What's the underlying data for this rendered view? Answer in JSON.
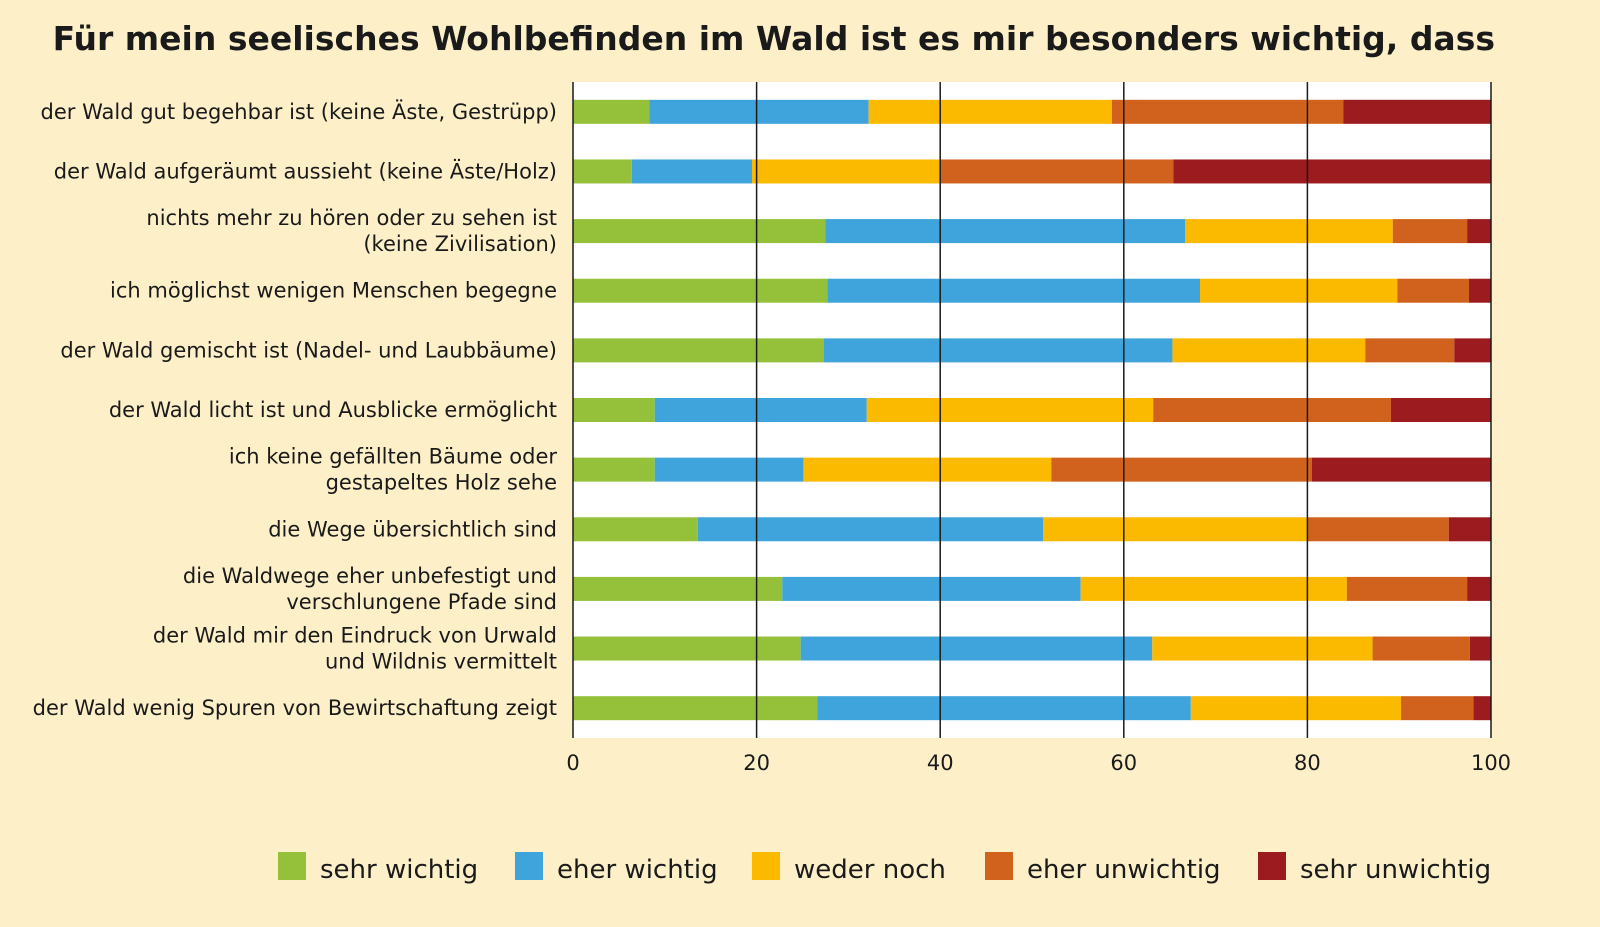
{
  "chart_data": {
    "type": "bar",
    "orientation": "horizontal",
    "stacked": true,
    "title": "Für mein seelisches Wohlbefinden im Wald ist es mir besonders wichtig, dass",
    "xlabel": "",
    "ylabel": "",
    "xlim": [
      0,
      100
    ],
    "xticks": [
      "0",
      "20",
      "40",
      "60",
      "80",
      "100"
    ],
    "grid": "vertical",
    "legend_position": "bottom",
    "categories": [
      [
        "der Wald gut begehbar ist (keine Äste, Gestrüpp)"
      ],
      [
        "der Wald aufgeräumt aussieht (keine Äste/Holz)"
      ],
      [
        "nichts mehr zu hören oder zu sehen ist",
        "(keine Zivilisation)"
      ],
      [
        "ich möglichst wenigen Menschen begegne"
      ],
      [
        "der Wald gemischt ist (Nadel- und Laubbäume)"
      ],
      [
        "der Wald licht ist und Ausblicke ermöglicht"
      ],
      [
        "ich keine gefällten Bäume oder",
        "gestapeltes Holz sehe"
      ],
      [
        "die Wege übersichtlich sind"
      ],
      [
        "die Waldwege eher unbefestigt und",
        "verschlungene Pfade sind"
      ],
      [
        "der Wald mir den Eindruck von Urwald",
        "und Wildnis vermittelt"
      ],
      [
        "der Wald wenig Spuren von Bewirtschaftung zeigt"
      ]
    ],
    "series": [
      {
        "name": "sehr wichtig",
        "color": "#95c13a",
        "values": [
          8.3,
          6.4,
          27.5,
          27.7,
          27.3,
          8.9,
          8.9,
          13.6,
          22.8,
          24.8,
          26.6
        ]
      },
      {
        "name": "eher wichtig",
        "color": "#3fa4dc",
        "values": [
          23.9,
          13.1,
          39.2,
          40.6,
          38.0,
          23.1,
          16.2,
          37.6,
          32.5,
          38.3,
          40.7
        ]
      },
      {
        "name": "weder noch",
        "color": "#fbb900",
        "values": [
          26.5,
          20.5,
          22.6,
          21.5,
          21.0,
          31.2,
          27.0,
          28.8,
          29.0,
          24.0,
          22.9
        ]
      },
      {
        "name": "eher unwichtig",
        "color": "#d0621d",
        "values": [
          25.2,
          25.4,
          8.1,
          7.8,
          9.7,
          25.9,
          28.4,
          15.4,
          13.1,
          10.6,
          7.9
        ]
      },
      {
        "name": "sehr unwichtig",
        "color": "#9c1b1e",
        "values": [
          16.1,
          34.6,
          2.6,
          2.4,
          4.0,
          10.9,
          19.5,
          4.6,
          2.6,
          2.3,
          1.9
        ]
      }
    ]
  }
}
